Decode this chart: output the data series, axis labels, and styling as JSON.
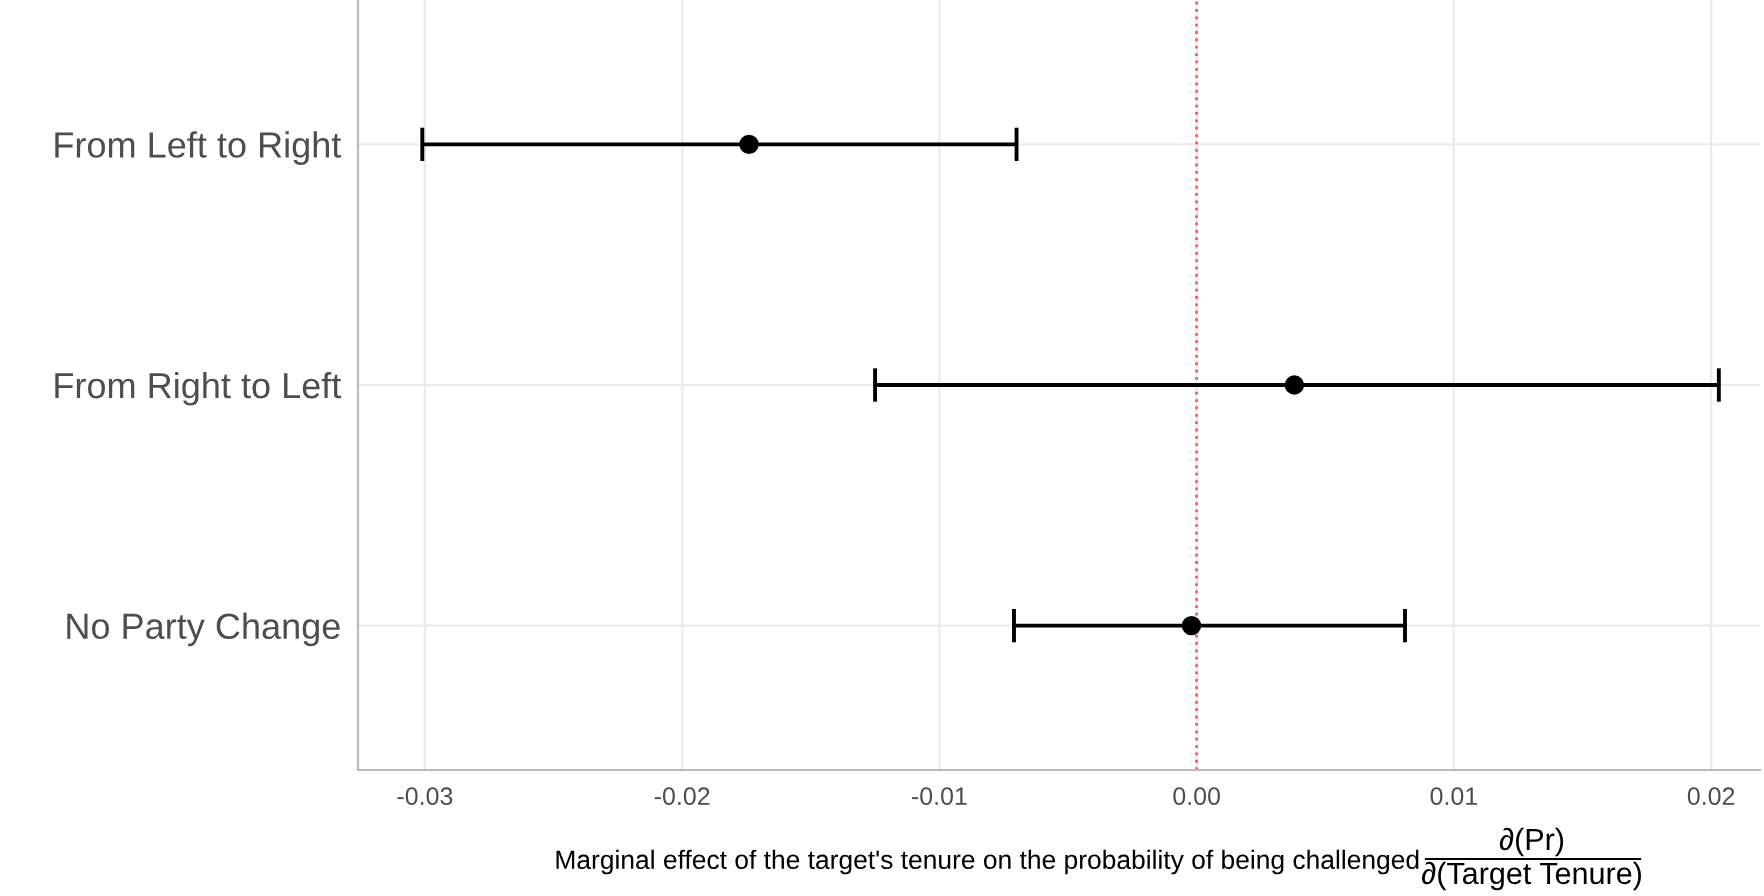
{
  "chart_data": {
    "type": "scatter",
    "orientation": "horizontal",
    "categories": [
      "From Left to Right",
      "From Right to Left",
      "No Party Change"
    ],
    "values": [
      -0.0174,
      0.0038,
      -0.0002
    ],
    "errors": [
      [
        -0.0301,
        -0.007
      ],
      [
        -0.0125,
        0.0203
      ],
      [
        -0.0071,
        0.0081
      ]
    ],
    "color": "#000000",
    "marker": "circle",
    "xlim": [
      -0.0326,
      0.0219
    ],
    "xticks": [
      {
        "value": -0.03,
        "label": "-0.03"
      },
      {
        "value": -0.02,
        "label": "-0.02"
      },
      {
        "value": -0.01,
        "label": "-0.01"
      },
      {
        "value": 0,
        "label": "0.00"
      },
      {
        "value": 0.01,
        "label": "0.01"
      },
      {
        "value": 0.02,
        "label": "0.02"
      }
    ],
    "xlabel": "Marginal effect of the target's tenure on the probability of being challenged",
    "annotations": [
      "∂(Pr)",
      "∂(Target Tenure)"
    ],
    "ref_lines": [
      {
        "axis": "x",
        "value": 0,
        "color": "#ff5a5a",
        "line_style": "dotted"
      }
    ],
    "grid": true
  }
}
